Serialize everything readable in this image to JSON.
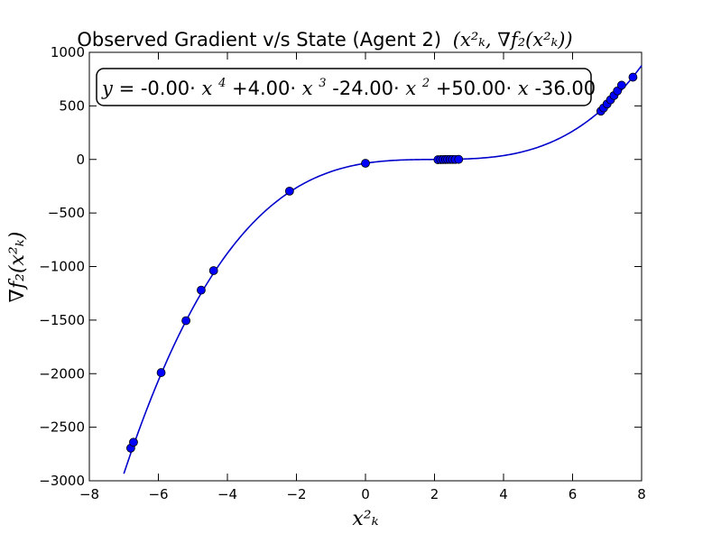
{
  "chart_data": {
    "type": "scatter",
    "title": "Observed Gradient v/s State (Agent 2)",
    "title_math": "(x²ₖ, ∇f₂(x²ₖ))",
    "xlabel": "x²ₖ",
    "ylabel": "∇f₂(x²ₖ)",
    "xlim": [
      -8,
      8
    ],
    "ylim": [
      -3000,
      1000
    ],
    "x_ticks": [
      -8,
      -6,
      -4,
      -2,
      0,
      2,
      4,
      6,
      8
    ],
    "x_tick_labels": [
      "−8",
      "−6",
      "−4",
      "−2",
      "0",
      "2",
      "4",
      "6",
      "8"
    ],
    "y_ticks": [
      -3000,
      -2500,
      -2000,
      -1500,
      -1000,
      -500,
      0,
      500,
      1000
    ],
    "y_tick_labels": [
      "−3000",
      "−2500",
      "−2000",
      "−1500",
      "−1000",
      "−500",
      "0",
      "500",
      "1000"
    ],
    "grid": false,
    "fit_equation": {
      "lhs": "y",
      "eq": " = -0.00·",
      "t1": "x",
      "t1_exp": "4",
      "op2": "+4.00·",
      "t2": "x",
      "t2_exp": "3",
      "op3": " -24.00·",
      "t3": "x",
      "t3_exp": "2",
      "op4": "+50.00·",
      "t4": "x",
      "op5": " -36.00",
      "coefficients": [
        0.0,
        4.0,
        -24.0,
        50.0,
        -36.0
      ]
    },
    "fit_curve": {
      "x_range": [
        -7.0,
        8.0
      ],
      "color": "#0000cc"
    },
    "series": [
      {
        "marker_color": "#0000ff",
        "x": [
          -6.8,
          -6.72,
          -5.92,
          -5.2,
          -4.76,
          -4.4,
          -2.2,
          0.0,
          2.1,
          2.18,
          2.25,
          2.32,
          2.38,
          2.45,
          2.52,
          2.6,
          2.7,
          6.82,
          6.9,
          7.0,
          7.1,
          7.2,
          7.3,
          7.42,
          7.75
        ],
        "y": [
          -2695,
          -2640,
          -1990,
          -1505,
          -1220,
          -1038,
          -296,
          -36,
          -2.6,
          -1.6,
          -1.0,
          -0.4,
          -0.3,
          -0.1,
          0.0,
          0.1,
          0.4,
          451,
          481,
          518,
          557,
          597,
          640,
          693,
          768
        ]
      }
    ]
  }
}
